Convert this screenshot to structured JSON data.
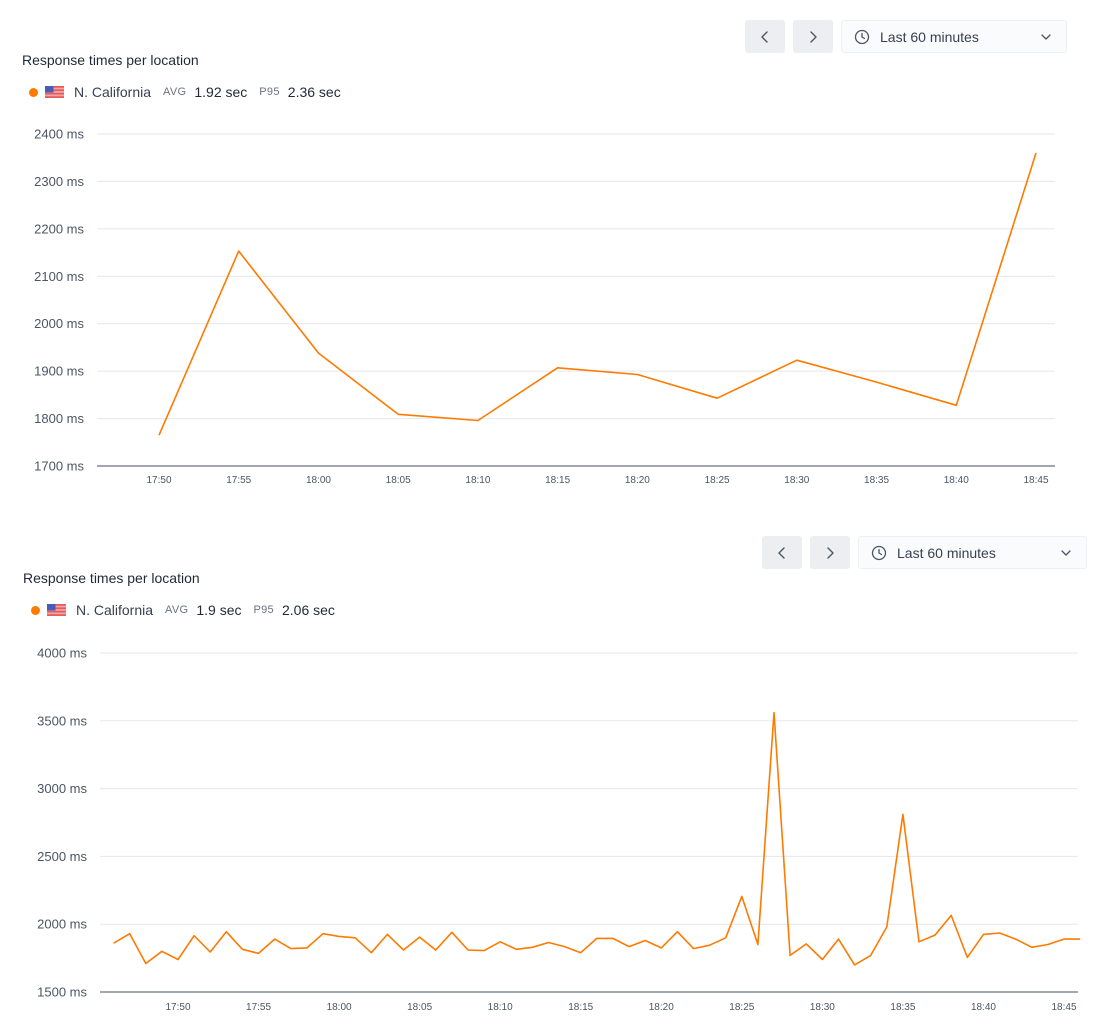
{
  "colors": {
    "series": "#ff7a00",
    "grid": "#e5e7eb",
    "axis": "#6b7280"
  },
  "panels": [
    {
      "title": "Response times per location",
      "toolbar": {
        "prev_icon": "chevron-left-icon",
        "next_icon": "chevron-right-icon",
        "range_label": "Last 60 minutes",
        "range_icon": "clock-icon",
        "dropdown_icon": "chevron-down-icon"
      },
      "legend": {
        "location": "N. California",
        "flag_icon": "us-flag-icon",
        "avg_label": "AVG",
        "avg_value": "1.92 sec",
        "p95_label": "P95",
        "p95_value": "2.36 sec"
      }
    },
    {
      "title": "Response times per location",
      "toolbar": {
        "prev_icon": "chevron-left-icon",
        "next_icon": "chevron-right-icon",
        "range_label": "Last 60 minutes",
        "range_icon": "clock-icon",
        "dropdown_icon": "chevron-down-icon"
      },
      "legend": {
        "location": "N. California",
        "flag_icon": "us-flag-icon",
        "avg_label": "AVG",
        "avg_value": "1.9 sec",
        "p95_label": "P95",
        "p95_value": "2.06 sec"
      }
    }
  ],
  "chart_data": [
    {
      "type": "line",
      "title": "Response times per location",
      "ylim": [
        1700,
        2400
      ],
      "yticks": [
        1700,
        1800,
        1900,
        2000,
        2100,
        2200,
        2300,
        2400
      ],
      "ytick_labels": [
        "1700 ms",
        "1800 ms",
        "1900 ms",
        "2000 ms",
        "2100 ms",
        "2200 ms",
        "2300 ms",
        "2400 ms"
      ],
      "xticks": [
        "17:50",
        "17:55",
        "18:00",
        "18:05",
        "18:10",
        "18:15",
        "18:20",
        "18:25",
        "18:30",
        "18:35",
        "18:40",
        "18:45"
      ],
      "grid": true,
      "series": [
        {
          "name": "N. California",
          "x": [
            "17:50",
            "17:55",
            "18:00",
            "18:05",
            "18:10",
            "18:15",
            "18:20",
            "18:25",
            "18:30",
            "18:35",
            "18:40",
            "18:45"
          ],
          "values": [
            1765,
            2153,
            1938,
            1809,
            1796,
            1907,
            1893,
            1843,
            1923,
            1877,
            1828,
            2360
          ]
        }
      ]
    },
    {
      "type": "line",
      "title": "Response times per location",
      "ylim": [
        1500,
        4000
      ],
      "yticks": [
        1500,
        2000,
        2500,
        3000,
        3500,
        4000
      ],
      "ytick_labels": [
        "1500 ms",
        "2000 ms",
        "2500 ms",
        "3000 ms",
        "3500 ms",
        "4000 ms"
      ],
      "xticks": [
        "17:50",
        "17:55",
        "18:00",
        "18:05",
        "18:10",
        "18:15",
        "18:20",
        "18:25",
        "18:30",
        "18:35",
        "18:40",
        "18:45"
      ],
      "grid": true,
      "series": [
        {
          "name": "N. California",
          "x": [
            "17:46",
            "17:47",
            "17:48",
            "17:49",
            "17:50",
            "17:51",
            "17:52",
            "17:53",
            "17:54",
            "17:55",
            "17:56",
            "17:57",
            "17:58",
            "17:59",
            "18:00",
            "18:01",
            "18:02",
            "18:03",
            "18:04",
            "18:05",
            "18:06",
            "18:07",
            "18:08",
            "18:09",
            "18:10",
            "18:11",
            "18:12",
            "18:13",
            "18:14",
            "18:15",
            "18:16",
            "18:17",
            "18:18",
            "18:19",
            "18:20",
            "18:21",
            "18:22",
            "18:23",
            "18:24",
            "18:25",
            "18:26",
            "18:27",
            "18:28",
            "18:29",
            "18:30",
            "18:31",
            "18:32",
            "18:33",
            "18:34",
            "18:35",
            "18:36",
            "18:37",
            "18:38",
            "18:39",
            "18:40",
            "18:41",
            "18:42",
            "18:43",
            "18:44",
            "18:45",
            "18:46"
          ],
          "values": [
            1860,
            1930,
            1710,
            1800,
            1740,
            1915,
            1795,
            1945,
            1815,
            1785,
            1890,
            1820,
            1825,
            1930,
            1910,
            1900,
            1790,
            1925,
            1810,
            1905,
            1810,
            1940,
            1810,
            1805,
            1870,
            1815,
            1830,
            1865,
            1835,
            1790,
            1895,
            1895,
            1835,
            1880,
            1825,
            1945,
            1820,
            1845,
            1900,
            2205,
            1850,
            3560,
            1770,
            1855,
            1740,
            1890,
            1700,
            1770,
            1980,
            2810,
            1870,
            1920,
            2065,
            1755,
            1925,
            1935,
            1890,
            1830,
            1850,
            1890,
            1890
          ]
        }
      ]
    }
  ]
}
